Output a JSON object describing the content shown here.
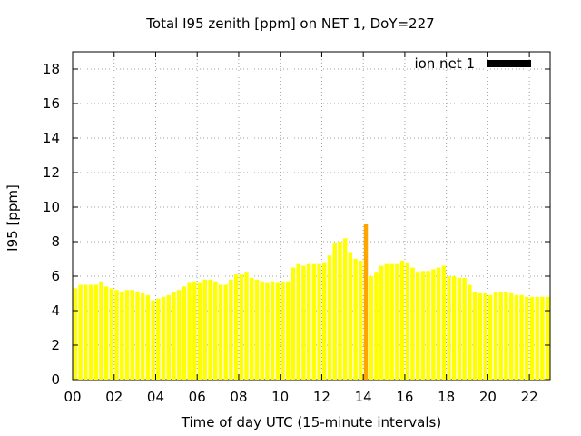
{
  "chart_data": {
    "type": "bar",
    "title": "Total I95 zenith [ppm] on NET 1, DoY=227",
    "xlabel": "Time of day UTC (15-minute intervals)",
    "ylabel": "I95 [ppm]",
    "xlim": [
      0,
      23
    ],
    "ylim": [
      0,
      19
    ],
    "x_ticks": [
      "00",
      "02",
      "04",
      "06",
      "08",
      "10",
      "12",
      "14",
      "16",
      "18",
      "20",
      "22"
    ],
    "y_ticks": [
      0,
      2,
      4,
      6,
      8,
      10,
      12,
      14,
      16,
      18
    ],
    "grid": true,
    "legend_position": "top-right",
    "series": [
      {
        "name": "ion net 1",
        "legend_color": "#000000",
        "bar_color": "#ffff00",
        "highlight_color": "#ffa500",
        "highlight_index": 56,
        "interval_hours": 0.25,
        "values": [
          5.3,
          5.5,
          5.5,
          5.5,
          5.5,
          5.7,
          5.4,
          5.3,
          5.2,
          5.1,
          5.2,
          5.2,
          5.1,
          5.0,
          4.9,
          4.6,
          4.7,
          4.8,
          4.9,
          5.1,
          5.2,
          5.4,
          5.6,
          5.7,
          5.6,
          5.8,
          5.8,
          5.7,
          5.5,
          5.5,
          5.8,
          6.1,
          6.1,
          6.2,
          5.9,
          5.8,
          5.7,
          5.6,
          5.7,
          5.6,
          5.7,
          5.7,
          6.5,
          6.7,
          6.6,
          6.7,
          6.7,
          6.7,
          6.8,
          7.2,
          7.9,
          8.0,
          8.2,
          7.4,
          7.0,
          6.9,
          9.0,
          6.0,
          6.2,
          6.6,
          6.7,
          6.7,
          6.7,
          6.9,
          6.8,
          6.5,
          6.2,
          6.3,
          6.3,
          6.4,
          6.5,
          6.6,
          6.0,
          6.0,
          5.9,
          5.9,
          5.5,
          5.1,
          5.0,
          5.0,
          4.9,
          5.1,
          5.1,
          5.1,
          5.0,
          4.9,
          4.9,
          4.8,
          4.8,
          4.8,
          4.8,
          4.8
        ]
      }
    ]
  }
}
